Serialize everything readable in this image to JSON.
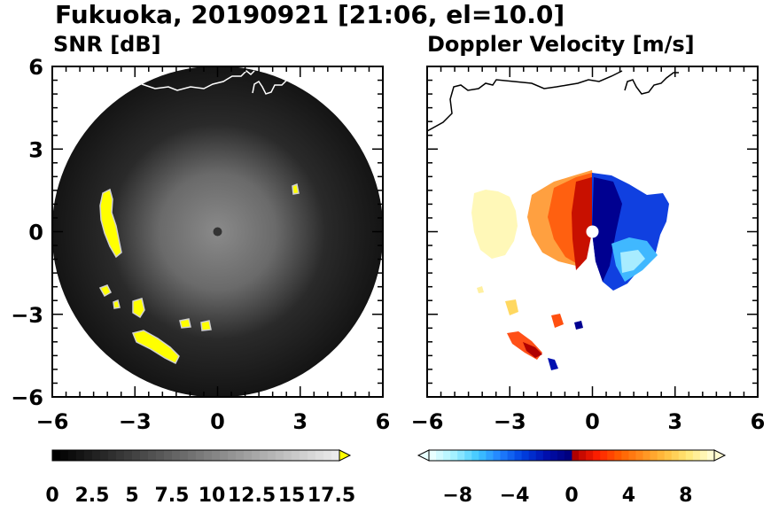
{
  "figure": {
    "title": "Fukuoka, 20190921 [21:06, el=10.0]"
  },
  "chart_data": [
    {
      "type": "heatmap",
      "title": "SNR [dB]",
      "xlim": [
        -6,
        6
      ],
      "ylim": [
        -6,
        6
      ],
      "x_ticks": [
        -6,
        -3,
        0,
        3,
        6
      ],
      "y_ticks": [
        -6,
        -3,
        0,
        3,
        6
      ],
      "x_tick_labels": [
        "−6",
        "−3",
        "0",
        "3",
        "6"
      ],
      "y_tick_labels": [
        "6",
        "3",
        "0",
        "−3",
        "−6"
      ],
      "grid": false,
      "colorbar": {
        "range": [
          0,
          18
        ],
        "labels": [
          "0",
          "2.5",
          "5",
          "7.5",
          "10",
          "12.5",
          "15",
          "17.5"
        ],
        "extend": "max",
        "cmap_low": "#000000",
        "cmap_high": "#ffffff",
        "extend_color": "#ffff00"
      },
      "features": [
        {
          "label": "coastline",
          "color": "#ffffff"
        },
        {
          "label": "strong echo",
          "color": "#ffff00"
        }
      ]
    },
    {
      "type": "heatmap",
      "title": "Doppler Velocity [m/s]",
      "xlim": [
        -6,
        6
      ],
      "ylim": [
        -6,
        6
      ],
      "x_ticks": [
        -6,
        -3,
        0,
        3,
        6
      ],
      "y_ticks": [
        -6,
        -3,
        0,
        3,
        6
      ],
      "x_tick_labels": [
        "−6",
        "−3",
        "0",
        "3",
        "6"
      ],
      "grid": false,
      "colorbar": {
        "range": [
          -10,
          10
        ],
        "labels": [
          "−8",
          "−4",
          "0",
          "4",
          "8"
        ],
        "extend": "both",
        "colors_negative": [
          "#e8ffff",
          "#a0f0ff",
          "#40c8ff",
          "#2080ff",
          "#0040e0",
          "#0010b0",
          "#000080"
        ],
        "colors_positive": [
          "#b00000",
          "#ff2000",
          "#ff6000",
          "#ff9020",
          "#ffc040",
          "#ffe878",
          "#fffcd0"
        ]
      },
      "features": [
        {
          "label": "coastline",
          "color": "#000000"
        }
      ]
    }
  ]
}
